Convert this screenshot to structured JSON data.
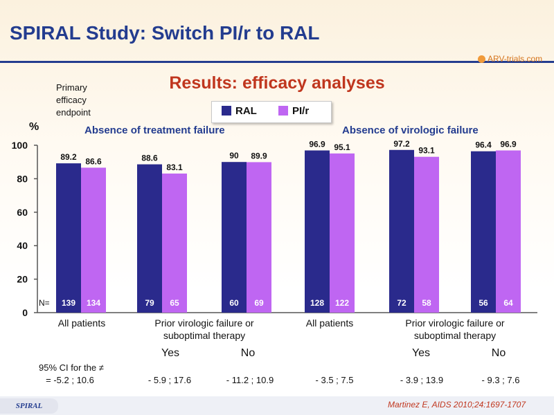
{
  "header": {
    "title": "SPIRAL Study: Switch PI/r to RAL",
    "logo_text": "ARV-trials.com",
    "subtitle": "Results: efficacy analyses"
  },
  "endpoint_label": [
    "Primary",
    "efficacy",
    "endpoint"
  ],
  "colors": {
    "RAL": "#2a2a8c",
    "PI/r": "#bf66f2",
    "title": "#233c8f",
    "accent": "#c0361e"
  },
  "legend": [
    {
      "label": "RAL",
      "color": "#2a2a8c"
    },
    {
      "label": "PI/r",
      "color": "#bf66f2"
    }
  ],
  "y_unit": "%",
  "group_titles": [
    "Absence of treatment failure",
    "Absence of virologic failure"
  ],
  "n_label": "N=",
  "chart_data": {
    "type": "bar",
    "ylim": [
      0,
      100
    ],
    "yticks": [
      0,
      20,
      40,
      60,
      80,
      100
    ],
    "groups": [
      {
        "title": "Absence of treatment failure",
        "subgroups": [
          {
            "category": "All patients",
            "RAL": 89.2,
            "PI/r": 86.6,
            "RAL_label": "89.2",
            "PI/r_label": "86.6",
            "N_RAL": 139,
            "N_PI/r": 134
          },
          {
            "category": "Prior virologic failure or suboptimal therapy: Yes",
            "RAL": 88.6,
            "PI/r": 83.1,
            "RAL_label": "88.6",
            "PI/r_label": "83.1",
            "N_RAL": 79,
            "N_PI/r": 65
          },
          {
            "category": "Prior virologic failure or suboptimal therapy: No",
            "RAL": 90,
            "PI/r": 89.9,
            "RAL_label": "90",
            "PI/r_label": "89.9",
            "N_RAL": 60,
            "N_PI/r": 69
          }
        ]
      },
      {
        "title": "Absence of virologic failure",
        "subgroups": [
          {
            "category": "All patients",
            "RAL": 96.9,
            "PI/r": 95.1,
            "RAL_label": "96.9",
            "PI/r_label": "95.1",
            "N_RAL": 128,
            "N_PI/r": 122
          },
          {
            "category": "Prior virologic failure or suboptimal therapy: Yes",
            "RAL": 97.2,
            "PI/r": 93.1,
            "RAL_label": "97.2",
            "PI/r_label": "93.1",
            "N_RAL": 72,
            "N_PI/r": 58
          },
          {
            "category": "Prior virologic failure or suboptimal therapy: No",
            "RAL": 96.4,
            "PI/r": 96.9,
            "RAL_label": "96.4",
            "PI/r_label": "96.9",
            "N_RAL": 56,
            "N_PI/r": 64
          }
        ]
      }
    ],
    "series": [
      {
        "name": "RAL",
        "values": [
          89.2,
          88.6,
          90,
          96.9,
          97.2,
          96.4
        ]
      },
      {
        "name": "PI/r",
        "values": [
          86.6,
          83.1,
          89.9,
          95.1,
          93.1,
          96.9
        ]
      }
    ]
  },
  "x_labels": {
    "all_patients": "All patients",
    "prior_line1": "Prior virologic failure or",
    "prior_line2": "suboptimal therapy",
    "yes": "Yes",
    "no": "No"
  },
  "ci": {
    "label_line1": "95% CI for the ≠",
    "values": [
      "= -5.2 ; 10.6",
      "- 5.9 ; 17.6",
      "- 11.2 ; 10.9",
      "- 3.5 ; 7.5",
      "- 3.9 ; 13.9",
      "- 9.3 ; 7.6"
    ]
  },
  "footer": {
    "badge": "SPIRAL",
    "citation": "Martinez E, AIDS 2010;24:1697-1707"
  }
}
